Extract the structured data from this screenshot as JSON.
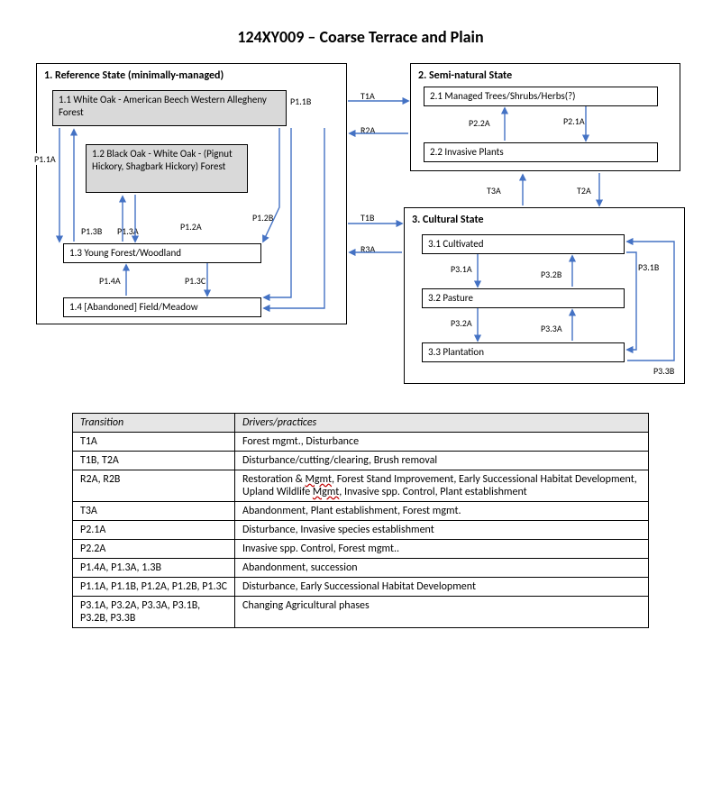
{
  "title": "124XY009 – Coarse Terrace and Plain",
  "colors": {
    "arrow": "#4472c4",
    "border": "#000000",
    "shaded_fill": "#d9d9d9",
    "table_header_bg": "#e6e6e6",
    "squiggle": "#c00000",
    "background": "#ffffff"
  },
  "states": {
    "s1": {
      "title": "1.  Reference State (minimally-managed)",
      "phases": {
        "p11": "1.1  White Oak - American Beech Western Allegheny Forest",
        "p12": "1.2  Black Oak - White Oak - (Pignut Hickory, Shagbark Hickory) Forest",
        "p13": "1.3  Young Forest/Woodland",
        "p14": "1.4  [Abandoned] Field/Meadow"
      }
    },
    "s2": {
      "title": "2.  Semi-natural State",
      "phases": {
        "p21": "2.1  Managed Trees/Shrubs/Herbs(?)",
        "p22": "2.2  Invasive Plants"
      }
    },
    "s3": {
      "title": "3.  Cultural State",
      "phases": {
        "p31": "3.1  Cultivated",
        "p32": "3.2  Pasture",
        "p33": "3.3  Plantation"
      }
    }
  },
  "labels": {
    "p11a": "P1.1A",
    "p11b": "P1.1B",
    "p12a": "P1.2A",
    "p12b": "P1.2B",
    "p13a": "P1.3A",
    "p13b": "P1.3B",
    "p13c": "P1.3C",
    "p14a": "P1.4A",
    "p21a": "P2.1A",
    "p22a": "P2.2A",
    "p31a": "P3.1A",
    "p31b": "P3.1B",
    "p32a": "P3.2A",
    "p32b": "P3.2B",
    "p33a": "P3.3A",
    "p33b": "P3.3B",
    "t1a": "T1A",
    "t1b": "T1B",
    "t2a": "T2A",
    "t3a": "T3A",
    "r2a": "R2A",
    "r3a": "R3A"
  },
  "table": {
    "headers": {
      "c1": "Transition",
      "c2": "Drivers/practices"
    },
    "rows": [
      {
        "t": "T1A",
        "d": "Forest mgmt., Disturbance"
      },
      {
        "t": "T1B, T2A",
        "d": "Disturbance/cutting/clearing, Brush removal"
      },
      {
        "t": "R2A, R2B",
        "d_html": "Restoration & <span class='squig'>Mgmt</span>, Forest Stand Improvement, Early Successional Habitat Development, Upland Wildlife <span class='squig'>Mgmt</span>, Invasive spp. Control, Plant establishment"
      },
      {
        "t": "T3A",
        "d": "Abandonment, Plant establishment, Forest mgmt."
      },
      {
        "t": "P2.1A",
        "d": "Disturbance, Invasive species establishment"
      },
      {
        "t": "P2.2A",
        "d": "Invasive spp. Control, Forest mgmt.."
      },
      {
        "t": "P1.4A, P1.3A, 1.3B",
        "d": "Abandonment, succession"
      },
      {
        "t": "P1.1A, P1.1B, P1.2A, P1.2B, P1.3C",
        "d": "Disturbance, Early Successional Habitat Development"
      },
      {
        "t": "P3.1A, P3.2A, P3.3A, P3.1B, P3.2B, P3.3B",
        "d": "Changing Agricultural phases"
      }
    ]
  }
}
